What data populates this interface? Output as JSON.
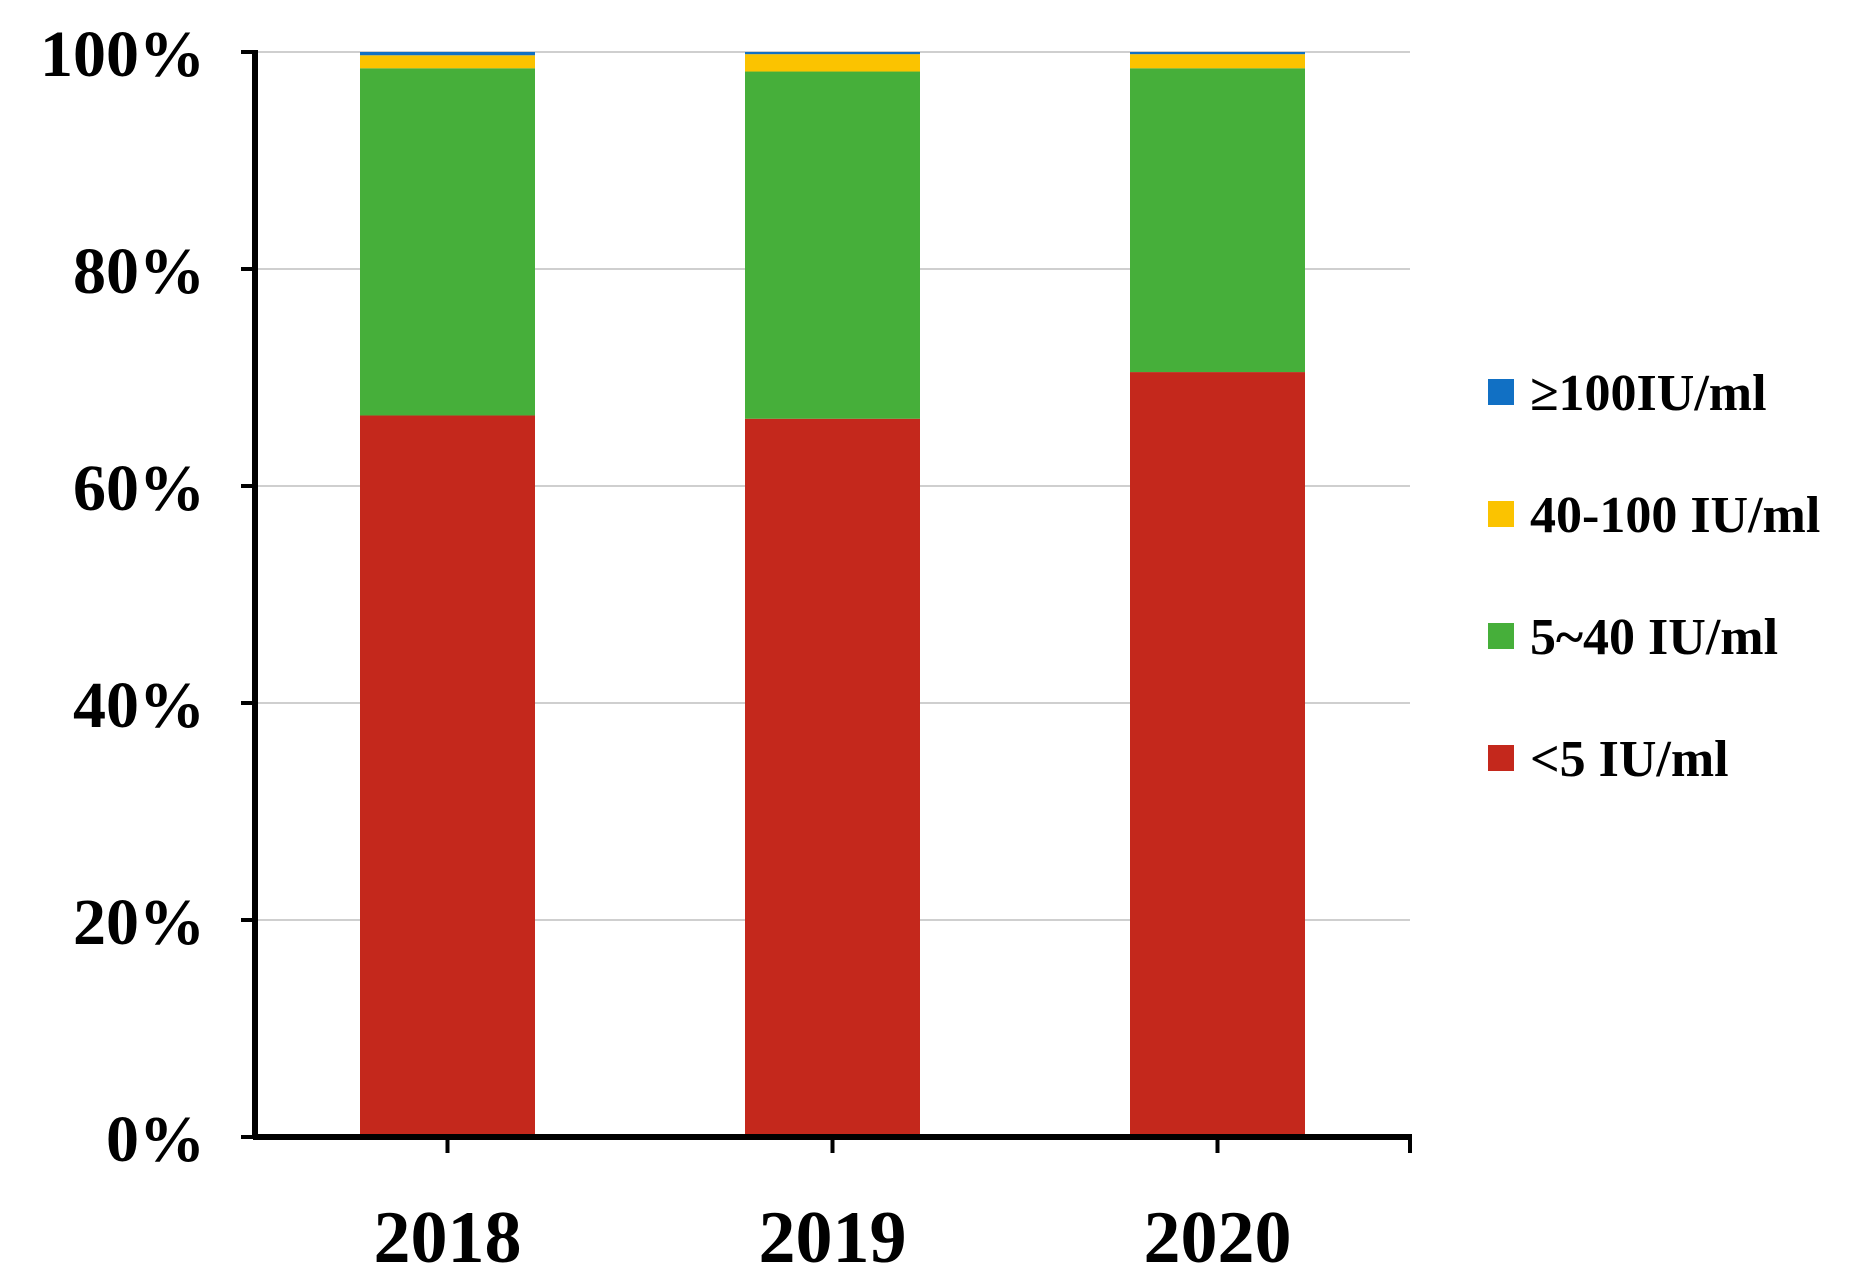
{
  "chart_data": {
    "type": "bar",
    "stacked": true,
    "title": "",
    "xlabel": "",
    "ylabel": "",
    "categories": [
      "2018",
      "2019",
      "2020"
    ],
    "ylim": [
      0,
      100
    ],
    "yticks": [
      "0%",
      "20%",
      "40%",
      "60%",
      "80%",
      "100%"
    ],
    "grid": true,
    "legend_position": "right",
    "series": [
      {
        "name": "<5 IU/ml",
        "color": "#C4281C",
        "values": [
          66.5,
          66.2,
          70.5
        ]
      },
      {
        "name": "5~40 IU/ml",
        "color": "#46AF3A",
        "values": [
          32.0,
          32.0,
          28.0
        ]
      },
      {
        "name": "40-100 IU/ml",
        "color": "#FBC300",
        "values": [
          1.2,
          1.6,
          1.3
        ]
      },
      {
        "name": "≥100IU/ml",
        "color": "#1170C4",
        "values": [
          0.3,
          0.2,
          0.2
        ]
      }
    ]
  }
}
